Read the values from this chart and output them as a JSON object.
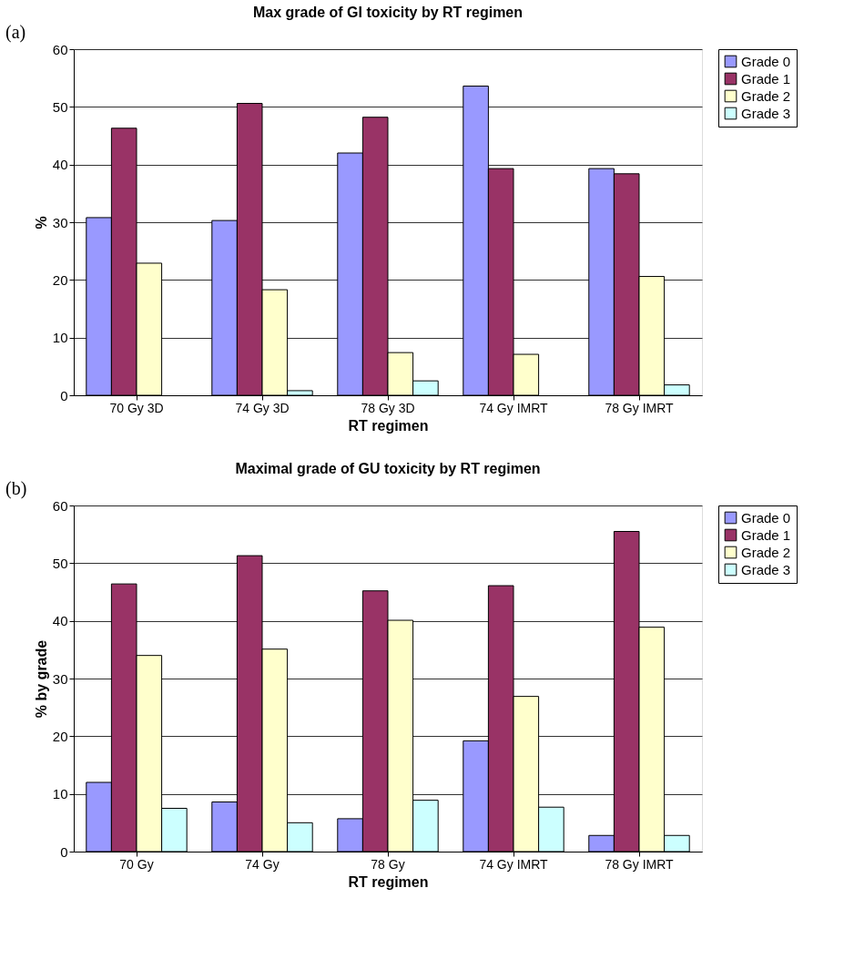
{
  "chart_data": [
    {
      "type": "bar",
      "title": "Max grade of GI toxicity by RT regimen",
      "xlabel": "RT regimen",
      "ylabel": "%",
      "annotations": [
        "(a)"
      ],
      "categories": [
        "70 Gy 3D",
        "74 Gy 3D",
        "78 Gy 3D",
        "74 Gy IMRT",
        "78 Gy IMRT"
      ],
      "series": [
        {
          "name": "Grade 0",
          "color": "#9999ff",
          "values": [
            30.8,
            30.3,
            42.0,
            53.6,
            39.3
          ]
        },
        {
          "name": "Grade 1",
          "color": "#993366",
          "values": [
            46.3,
            50.6,
            48.2,
            39.3,
            38.4
          ]
        },
        {
          "name": "Grade 2",
          "color": "#ffffcc",
          "values": [
            22.9,
            18.3,
            7.4,
            7.1,
            20.6
          ]
        },
        {
          "name": "Grade 3",
          "color": "#ccffff",
          "values": [
            null,
            0.8,
            2.5,
            null,
            1.8
          ]
        }
      ],
      "ylim": [
        0,
        60
      ],
      "yticks": [
        0,
        10,
        20,
        30,
        40,
        50,
        60
      ],
      "grid": "y",
      "legend": "right"
    },
    {
      "type": "bar",
      "title": "Maximal grade of GU toxicity by RT regimen",
      "xlabel": "RT regimen",
      "ylabel": "% by grade",
      "annotations": [
        "(b)"
      ],
      "categories": [
        "70 Gy",
        "74 Gy",
        "78 Gy",
        "74 Gy IMRT",
        "78 Gy IMRT"
      ],
      "series": [
        {
          "name": "Grade 0",
          "color": "#9999ff",
          "values": [
            12.0,
            8.6,
            5.7,
            19.2,
            2.8
          ]
        },
        {
          "name": "Grade 1",
          "color": "#993366",
          "values": [
            46.4,
            51.3,
            45.2,
            46.1,
            55.5
          ]
        },
        {
          "name": "Grade 2",
          "color": "#ffffcc",
          "values": [
            34.0,
            35.1,
            40.1,
            26.9,
            38.9
          ]
        },
        {
          "name": "Grade 3",
          "color": "#ccffff",
          "values": [
            7.5,
            5.0,
            8.9,
            7.7,
            2.8
          ]
        }
      ],
      "ylim": [
        0,
        60
      ],
      "yticks": [
        0,
        10,
        20,
        30,
        40,
        50,
        60
      ],
      "grid": "y",
      "legend": "right"
    }
  ]
}
